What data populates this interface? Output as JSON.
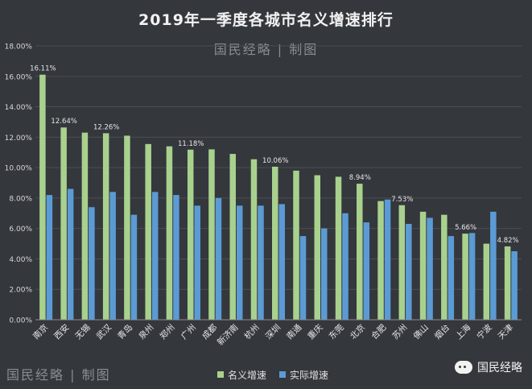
{
  "title": "2019年一季度各城市名义增速排行",
  "watermark": "国民经略 | 制图",
  "brand": "国民经略",
  "chart_data": {
    "type": "bar",
    "categories": [
      "南京",
      "西安",
      "无锡",
      "武汉",
      "青岛",
      "泉州",
      "郑州",
      "广州",
      "成都",
      "新济南",
      "杭州",
      "深圳",
      "南通",
      "重庆",
      "东莞",
      "北京",
      "合肥",
      "苏州",
      "佛山",
      "烟台",
      "上海",
      "宁波",
      "天津"
    ],
    "series": [
      {
        "name": "名义增速",
        "color": "#a9d18e",
        "values": [
          16.11,
          12.64,
          12.3,
          12.26,
          12.1,
          11.55,
          11.4,
          11.18,
          11.2,
          10.9,
          10.55,
          10.06,
          9.8,
          9.5,
          9.4,
          8.94,
          7.8,
          7.53,
          7.1,
          6.9,
          5.66,
          5.0,
          4.82
        ]
      },
      {
        "name": "实际增速",
        "color": "#5b9bd5",
        "values": [
          8.2,
          8.6,
          7.4,
          8.4,
          6.9,
          8.4,
          8.2,
          7.5,
          8.0,
          7.5,
          7.5,
          7.6,
          5.5,
          6.0,
          7.0,
          6.4,
          7.9,
          6.3,
          6.7,
          5.5,
          5.7,
          7.1,
          4.5
        ]
      }
    ],
    "data_labels": [
      {
        "category": "南京",
        "text": "16.11%"
      },
      {
        "category": "西安",
        "text": "12.64%"
      },
      {
        "category": "武汉",
        "text": "12.26%"
      },
      {
        "category": "广州",
        "text": "11.18%"
      },
      {
        "category": "深圳",
        "text": "10.06%"
      },
      {
        "category": "北京",
        "text": "8.94%"
      },
      {
        "category": "苏州",
        "text": "7.53%"
      },
      {
        "category": "上海",
        "text": "5.66%"
      },
      {
        "category": "天津",
        "text": "4.82%"
      }
    ],
    "y_ticks": [
      "0.00%",
      "2.00%",
      "4.00%",
      "6.00%",
      "8.00%",
      "10.00%",
      "12.00%",
      "14.00%",
      "16.00%",
      "18.00%"
    ],
    "ylim": [
      0,
      18
    ],
    "grid": true,
    "legend_position": "bottom"
  }
}
